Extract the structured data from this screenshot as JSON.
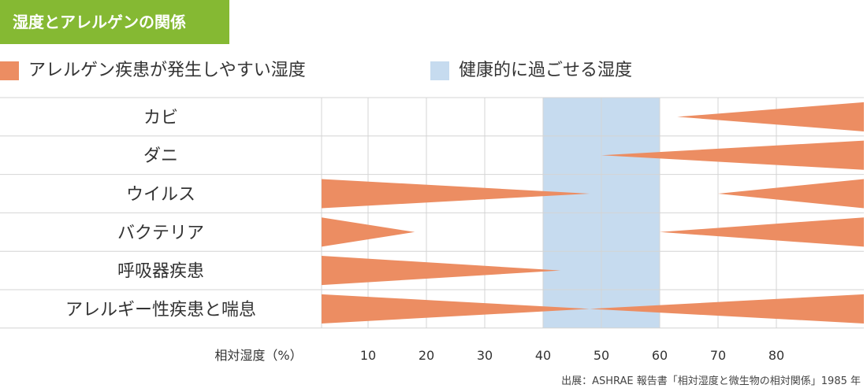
{
  "colors": {
    "header_bg": "#85b933",
    "header_text": "#ffffff",
    "risk": "#ec8d62",
    "healthy": "#c6dbef",
    "gridline": "#d4d4d4",
    "text": "#333333"
  },
  "header": {
    "title": "湿度とアレルゲンの関係"
  },
  "legend": {
    "risk_label": "アレルゲン疾患が発生しやすい湿度",
    "healthy_label": "健康的に過ごせる湿度"
  },
  "source": "出展：ASHRAE 報告書「相対湿度と微生物の相対関係」1985 年",
  "chart_data": {
    "type": "range-wedge",
    "xlabel": "相対湿度（%）",
    "xlim": [
      0,
      95
    ],
    "xticks": [
      10,
      20,
      30,
      40,
      50,
      60,
      70,
      80
    ],
    "healthy_range": [
      40,
      60
    ],
    "categories": [
      {
        "name": "カビ",
        "risk_zones": [
          {
            "from": 63,
            "to": 95,
            "thick_end": "right"
          }
        ]
      },
      {
        "name": "ダニ",
        "risk_zones": [
          {
            "from": 50,
            "to": 95,
            "thick_end": "right"
          }
        ]
      },
      {
        "name": "ウイルス",
        "risk_zones": [
          {
            "from": 0,
            "to": 48,
            "thick_end": "left"
          },
          {
            "from": 70,
            "to": 95,
            "thick_end": "right"
          }
        ]
      },
      {
        "name": "バクテリア",
        "risk_zones": [
          {
            "from": 0,
            "to": 18,
            "thick_end": "left"
          },
          {
            "from": 60,
            "to": 95,
            "thick_end": "right"
          }
        ]
      },
      {
        "name": "呼吸器疾患",
        "risk_zones": [
          {
            "from": 0,
            "to": 43,
            "thick_end": "left"
          }
        ]
      },
      {
        "name": "アレルギー性疾患と喘息",
        "risk_zones": [
          {
            "from": 0,
            "to": 48,
            "thick_end": "left"
          },
          {
            "from": 48,
            "to": 95,
            "thick_end": "right"
          }
        ]
      }
    ]
  }
}
